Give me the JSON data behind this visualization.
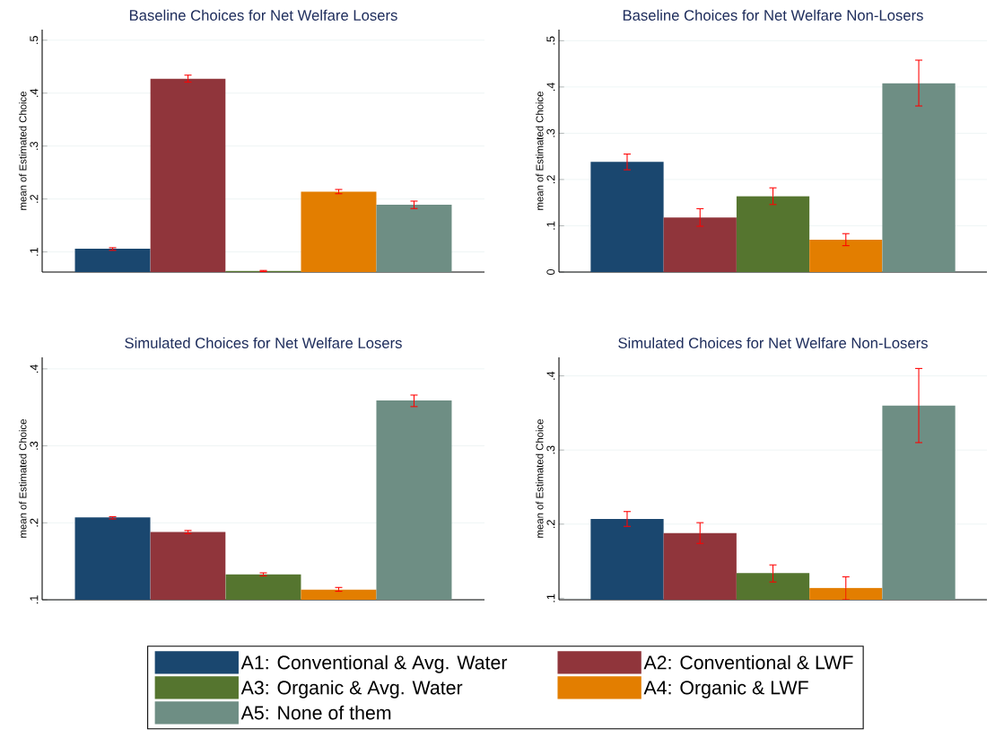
{
  "chart_data": [
    {
      "type": "bar",
      "title": "Baseline Choices for Net Welfare Losers",
      "ylabel": "mean of Estimated Choice",
      "categories": [
        null
      ],
      "ylim": [
        0.062,
        0.52
      ],
      "yticks": [
        {
          "value": 0.1,
          "label": ".1"
        },
        {
          "value": 0.2,
          "label": ".2"
        },
        {
          "value": 0.3,
          "label": ".3"
        },
        {
          "value": 0.4,
          "label": ".4"
        },
        {
          "value": 0.5,
          "label": ".5"
        }
      ],
      "grid": "y",
      "tick_labels": "y",
      "series": [
        {
          "color": "#1a476f",
          "values": [
            0.106
          ],
          "errors": [
            [
              0.103,
              0.108
            ]
          ]
        },
        {
          "color": "#90353b",
          "values": [
            0.427
          ],
          "errors": [
            [
              0.421,
              0.434
            ]
          ]
        },
        {
          "color": "#55752f",
          "values": [
            0.064
          ],
          "errors": [
            [
              0.063,
              0.065
            ]
          ]
        },
        {
          "color": "#e37e00",
          "values": [
            0.214
          ],
          "errors": [
            [
              0.21,
              0.218
            ]
          ]
        },
        {
          "color": "#6e8e84",
          "values": [
            0.189
          ],
          "errors": [
            [
              0.182,
              0.196
            ]
          ]
        }
      ]
    },
    {
      "type": "bar",
      "title": "Baseline Choices for Net Welfare Non-Losers",
      "ylabel": "mean of Estimated Choice",
      "categories": [
        null
      ],
      "ylim": [
        0,
        0.524
      ],
      "yticks": [
        0,
        {
          "value": 0.1,
          "label": ".1"
        },
        {
          "value": 0.2,
          "label": ".2"
        },
        {
          "value": 0.3,
          "label": ".3"
        },
        {
          "value": 0.4,
          "label": ".4"
        },
        {
          "value": 0.5,
          "label": ".5"
        }
      ],
      "grid": "y",
      "tick_labels": "y",
      "series": [
        {
          "color": "#1a476f",
          "values": [
            0.238
          ],
          "errors": [
            [
              0.221,
              0.255
            ]
          ]
        },
        {
          "color": "#90353b",
          "values": [
            0.118
          ],
          "errors": [
            [
              0.099,
              0.137
            ]
          ]
        },
        {
          "color": "#55752f",
          "values": [
            0.164
          ],
          "errors": [
            [
              0.146,
              0.182
            ]
          ]
        },
        {
          "color": "#e37e00",
          "values": [
            0.07
          ],
          "errors": [
            [
              0.057,
              0.083
            ]
          ]
        },
        {
          "color": "#6e8e84",
          "values": [
            0.408
          ],
          "errors": [
            [
              0.359,
              0.458
            ]
          ]
        }
      ]
    },
    {
      "type": "bar",
      "title": "Simulated Choices for Net Welfare Losers",
      "ylabel": "mean of Estimated Choice",
      "categories": [
        null
      ],
      "ylim": [
        0.1,
        0.415
      ],
      "yticks": [
        {
          "value": 0.1,
          "label": ".1"
        },
        {
          "value": 0.2,
          "label": ".2"
        },
        {
          "value": 0.3,
          "label": ".3"
        },
        {
          "value": 0.4,
          "label": ".4"
        }
      ],
      "grid": "y",
      "tick_labels": "y",
      "series": [
        {
          "color": "#1a476f",
          "values": [
            0.207
          ],
          "errors": [
            [
              0.205,
              0.208
            ]
          ]
        },
        {
          "color": "#90353b",
          "values": [
            0.188
          ],
          "errors": [
            [
              0.186,
              0.19
            ]
          ]
        },
        {
          "color": "#55752f",
          "values": [
            0.133
          ],
          "errors": [
            [
              0.131,
              0.135
            ]
          ]
        },
        {
          "color": "#e37e00",
          "values": [
            0.113
          ],
          "errors": [
            [
              0.111,
              0.116
            ]
          ]
        },
        {
          "color": "#6e8e84",
          "values": [
            0.359
          ],
          "errors": [
            [
              0.351,
              0.366
            ]
          ]
        }
      ]
    },
    {
      "type": "bar",
      "title": "Simulated Choices for Net Welfare Non-Losers",
      "ylabel": "mean of Estimated Choice",
      "categories": [
        null
      ],
      "ylim": [
        0.098,
        0.425
      ],
      "yticks": [
        {
          "value": 0.1,
          "label": ".1"
        },
        {
          "value": 0.2,
          "label": ".2"
        },
        {
          "value": 0.3,
          "label": ".3"
        },
        {
          "value": 0.4,
          "label": ".4"
        }
      ],
      "grid": "y",
      "tick_labels": "y",
      "legend": "bottom",
      "series": [
        {
          "name": "A1: Conventional & Avg. Water",
          "color": "#1a476f",
          "values": [
            0.207
          ],
          "errors": [
            [
              0.197,
              0.217
            ]
          ]
        },
        {
          "name": "A2: Conventional & LWF",
          "color": "#90353b",
          "values": [
            0.188
          ],
          "errors": [
            [
              0.174,
              0.202
            ]
          ]
        },
        {
          "name": "A3: Organic & Avg. Water",
          "color": "#55752f",
          "values": [
            0.134
          ],
          "errors": [
            [
              0.122,
              0.145
            ]
          ]
        },
        {
          "name": "A4: Organic & LWF",
          "color": "#e37e00",
          "values": [
            0.114
          ],
          "errors": [
            [
              0.098,
              0.129
            ]
          ]
        },
        {
          "name": "A5: None of them",
          "color": "#6e8e84",
          "values": [
            0.36
          ],
          "errors": [
            [
              0.31,
              0.41
            ]
          ]
        }
      ]
    }
  ]
}
